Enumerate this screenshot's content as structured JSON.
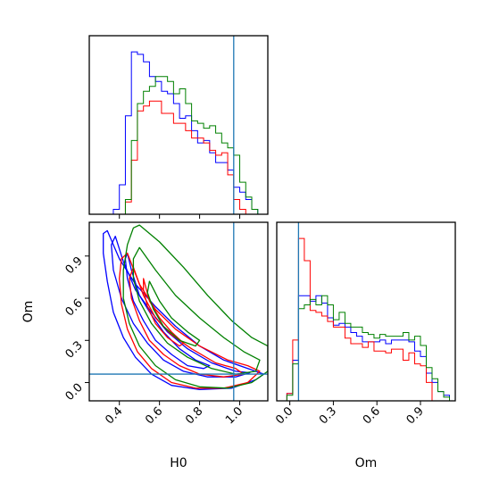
{
  "chart_data": {
    "type": "corner",
    "parameters": [
      "H0",
      "Om"
    ],
    "truth": {
      "H0": 0.97,
      "Om": 0.06
    },
    "colors": {
      "blue": "#0000ff",
      "red": "#ff0000",
      "green": "#008000",
      "truth": "#1f77b4"
    },
    "panels": [
      {
        "id": "hist-H0",
        "type": "histogram",
        "xlim": [
          0.25,
          1.14
        ],
        "x_ticks": [
          0.4,
          0.6,
          0.8,
          1.0
        ],
        "tick_labels": [],
        "xlabel": "",
        "ylabel": "",
        "bin_edges": [
          0.25,
          0.28,
          0.31,
          0.34,
          0.37,
          0.4,
          0.43,
          0.46,
          0.49,
          0.52,
          0.55,
          0.58,
          0.61,
          0.64,
          0.67,
          0.7,
          0.73,
          0.76,
          0.79,
          0.82,
          0.85,
          0.88,
          0.91,
          0.94,
          0.97,
          1.0,
          1.03,
          1.06,
          1.09,
          1.12
        ],
        "series": [
          {
            "color": "blue",
            "values": [
              0,
              0,
              0,
              0,
              2,
              12,
              40,
              66,
              65,
              62,
              56,
              54,
              50,
              49,
              45,
              39,
              40,
              34,
              29,
              30,
              25,
              21,
              21,
              18,
              11,
              9,
              6,
              2,
              0
            ]
          },
          {
            "color": "red",
            "values": [
              0,
              0,
              0,
              0,
              0,
              0,
              5,
              22,
              42,
              44,
              46,
              46,
              41,
              41,
              37,
              37,
              34,
              31,
              31,
              29,
              26,
              24,
              25,
              16,
              6,
              2,
              0,
              0,
              0
            ]
          },
          {
            "color": "green",
            "values": [
              0,
              0,
              0,
              0,
              0,
              0,
              6,
              30,
              45,
              50,
              52,
              56,
              56,
              54,
              49,
              51,
              45,
              38,
              37,
              35,
              36,
              33,
              29,
              27,
              24,
              13,
              7,
              2,
              0
            ]
          }
        ]
      },
      {
        "id": "hist-Om",
        "type": "histogram",
        "xlim": [
          -0.09,
          1.14
        ],
        "x_ticks": [
          0.0,
          0.3,
          0.6,
          0.9
        ],
        "tick_labels": [
          "0.0",
          "0.3",
          "0.6",
          "0.9"
        ],
        "xlabel": "Om",
        "ylabel": "",
        "bin_edges": [
          -0.06,
          -0.02,
          0.02,
          0.06,
          0.1,
          0.14,
          0.18,
          0.22,
          0.26,
          0.3,
          0.34,
          0.38,
          0.42,
          0.46,
          0.5,
          0.54,
          0.58,
          0.62,
          0.66,
          0.7,
          0.74,
          0.78,
          0.82,
          0.86,
          0.9,
          0.94,
          0.98,
          1.02,
          1.06,
          1.1
        ],
        "series": [
          {
            "color": "blue",
            "values": [
              0,
              4,
              22,
              57,
              57,
              54,
              57,
              53,
              45,
              41,
              42,
              40,
              37,
              35,
              32,
              32,
              32,
              33,
              31,
              33,
              33,
              33,
              32,
              27,
              24,
              15,
              10,
              5,
              3
            ]
          },
          {
            "color": "red",
            "values": [
              0,
              4,
              33,
              88,
              76,
              49,
              48,
              46,
              43,
              40,
              40,
              34,
              31,
              31,
              29,
              32,
              27,
              27,
              26,
              28,
              28,
              22,
              26,
              20,
              19,
              10,
              0,
              0,
              0
            ]
          },
          {
            "color": "green",
            "values": [
              0,
              3,
              20,
              50,
              52,
              55,
              52,
              57,
              52,
              44,
              48,
              42,
              40,
              40,
              37,
              36,
              34,
              36,
              35,
              35,
              35,
              37,
              33,
              35,
              30,
              18,
              12,
              5,
              2
            ]
          }
        ]
      },
      {
        "id": "contour-H0-Om",
        "type": "contour",
        "xlim": [
          0.25,
          1.14
        ],
        "ylim": [
          -0.13,
          1.14
        ],
        "x_ticks": [
          0.4,
          0.6,
          0.8,
          1.0
        ],
        "x_tick_labels": [
          "0.4",
          "0.6",
          "0.8",
          "1.0"
        ],
        "y_ticks": [
          0.0,
          0.3,
          0.6,
          0.9
        ],
        "y_tick_labels": [
          "0.0",
          "0.3",
          "0.6",
          "0.9"
        ],
        "xlabel": "H0",
        "ylabel": "Om",
        "series": [
          {
            "color": "blue",
            "levels": [
              [
                [
                  0.44,
                  0.92
                ],
                [
                  0.46,
                  0.8
                ],
                [
                  0.5,
                  0.62
                ],
                [
                  0.56,
                  0.48
                ],
                [
                  0.62,
                  0.36
                ],
                [
                  0.7,
                  0.24
                ],
                [
                  0.78,
                  0.16
                ],
                [
                  0.85,
                  0.12
                ],
                [
                  0.82,
                  0.1
                ],
                [
                  0.74,
                  0.12
                ],
                [
                  0.66,
                  0.2
                ],
                [
                  0.58,
                  0.3
                ],
                [
                  0.52,
                  0.44
                ],
                [
                  0.47,
                  0.58
                ],
                [
                  0.44,
                  0.74
                ],
                [
                  0.43,
                  0.88
                ]
              ],
              [
                [
                  0.38,
                  1.04
                ],
                [
                  0.42,
                  0.86
                ],
                [
                  0.48,
                  0.66
                ],
                [
                  0.56,
                  0.5
                ],
                [
                  0.64,
                  0.36
                ],
                [
                  0.74,
                  0.24
                ],
                [
                  0.86,
                  0.14
                ],
                [
                  0.98,
                  0.08
                ],
                [
                  1.05,
                  0.07
                ],
                [
                  0.98,
                  0.04
                ],
                [
                  0.84,
                  0.04
                ],
                [
                  0.72,
                  0.08
                ],
                [
                  0.62,
                  0.16
                ],
                [
                  0.54,
                  0.28
                ],
                [
                  0.47,
                  0.42
                ],
                [
                  0.41,
                  0.6
                ],
                [
                  0.37,
                  0.8
                ],
                [
                  0.36,
                  0.98
                ]
              ],
              [
                [
                  0.34,
                  1.08
                ],
                [
                  0.4,
                  0.88
                ],
                [
                  0.48,
                  0.7
                ],
                [
                  0.58,
                  0.54
                ],
                [
                  0.68,
                  0.4
                ],
                [
                  0.8,
                  0.26
                ],
                [
                  0.92,
                  0.16
                ],
                [
                  1.04,
                  0.1
                ],
                [
                  1.12,
                  0.06
                ],
                [
                  1.08,
                  0.02
                ],
                [
                  0.96,
                  -0.04
                ],
                [
                  0.8,
                  -0.05
                ],
                [
                  0.66,
                  -0.02
                ],
                [
                  0.56,
                  0.06
                ],
                [
                  0.48,
                  0.18
                ],
                [
                  0.42,
                  0.32
                ],
                [
                  0.37,
                  0.5
                ],
                [
                  0.34,
                  0.72
                ],
                [
                  0.32,
                  0.92
                ],
                [
                  0.32,
                  1.06
                ]
              ]
            ]
          },
          {
            "color": "red",
            "levels": [
              [
                [
                  0.52,
                  0.74
                ],
                [
                  0.55,
                  0.58
                ],
                [
                  0.6,
                  0.46
                ],
                [
                  0.66,
                  0.36
                ],
                [
                  0.72,
                  0.28
                ],
                [
                  0.7,
                  0.26
                ],
                [
                  0.64,
                  0.32
                ],
                [
                  0.58,
                  0.42
                ],
                [
                  0.54,
                  0.54
                ],
                [
                  0.52,
                  0.66
                ]
              ],
              [
                [
                  0.47,
                  0.82
                ],
                [
                  0.52,
                  0.62
                ],
                [
                  0.58,
                  0.46
                ],
                [
                  0.66,
                  0.34
                ],
                [
                  0.76,
                  0.24
                ],
                [
                  0.88,
                  0.14
                ],
                [
                  0.98,
                  0.1
                ],
                [
                  1.02,
                  0.06
                ],
                [
                  0.92,
                  0.04
                ],
                [
                  0.8,
                  0.06
                ],
                [
                  0.7,
                  0.12
                ],
                [
                  0.62,
                  0.2
                ],
                [
                  0.55,
                  0.3
                ],
                [
                  0.5,
                  0.44
                ],
                [
                  0.46,
                  0.6
                ],
                [
                  0.45,
                  0.74
                ]
              ],
              [
                [
                  0.44,
                  0.92
                ],
                [
                  0.5,
                  0.7
                ],
                [
                  0.58,
                  0.52
                ],
                [
                  0.68,
                  0.38
                ],
                [
                  0.8,
                  0.26
                ],
                [
                  0.94,
                  0.16
                ],
                [
                  1.04,
                  0.12
                ],
                [
                  1.1,
                  0.08
                ],
                [
                  1.04,
                  0.0
                ],
                [
                  0.92,
                  -0.04
                ],
                [
                  0.78,
                  -0.04
                ],
                [
                  0.66,
                  0.0
                ],
                [
                  0.56,
                  0.1
                ],
                [
                  0.49,
                  0.22
                ],
                [
                  0.44,
                  0.38
                ],
                [
                  0.41,
                  0.56
                ],
                [
                  0.4,
                  0.74
                ],
                [
                  0.41,
                  0.88
                ]
              ]
            ]
          },
          {
            "color": "green",
            "levels": [
              [
                [
                  0.55,
                  0.72
                ],
                [
                  0.6,
                  0.58
                ],
                [
                  0.66,
                  0.46
                ],
                [
                  0.74,
                  0.36
                ],
                [
                  0.8,
                  0.3
                ],
                [
                  0.78,
                  0.26
                ],
                [
                  0.7,
                  0.3
                ],
                [
                  0.62,
                  0.4
                ],
                [
                  0.57,
                  0.52
                ],
                [
                  0.54,
                  0.64
                ]
              ],
              [
                [
                  0.5,
                  0.96
                ],
                [
                  0.58,
                  0.8
                ],
                [
                  0.68,
                  0.62
                ],
                [
                  0.8,
                  0.46
                ],
                [
                  0.92,
                  0.32
                ],
                [
                  1.02,
                  0.22
                ],
                [
                  1.1,
                  0.16
                ],
                [
                  1.08,
                  0.08
                ],
                [
                  0.98,
                  0.06
                ],
                [
                  0.86,
                  0.1
                ],
                [
                  0.74,
                  0.18
                ],
                [
                  0.64,
                  0.28
                ],
                [
                  0.56,
                  0.42
                ],
                [
                  0.5,
                  0.58
                ],
                [
                  0.47,
                  0.74
                ],
                [
                  0.47,
                  0.88
                ]
              ],
              [
                [
                  0.5,
                  1.12
                ],
                [
                  0.6,
                  1.0
                ],
                [
                  0.72,
                  0.82
                ],
                [
                  0.84,
                  0.62
                ],
                [
                  0.96,
                  0.44
                ],
                [
                  1.06,
                  0.32
                ],
                [
                  1.14,
                  0.26
                ],
                [
                  1.14,
                  0.08
                ],
                [
                  1.06,
                  0.0
                ],
                [
                  0.94,
                  -0.04
                ],
                [
                  0.8,
                  -0.03
                ],
                [
                  0.68,
                  0.02
                ],
                [
                  0.58,
                  0.12
                ],
                [
                  0.5,
                  0.26
                ],
                [
                  0.45,
                  0.42
                ],
                [
                  0.42,
                  0.6
                ],
                [
                  0.42,
                  0.8
                ],
                [
                  0.44,
                  0.98
                ],
                [
                  0.47,
                  1.1
                ]
              ]
            ]
          }
        ]
      }
    ]
  }
}
